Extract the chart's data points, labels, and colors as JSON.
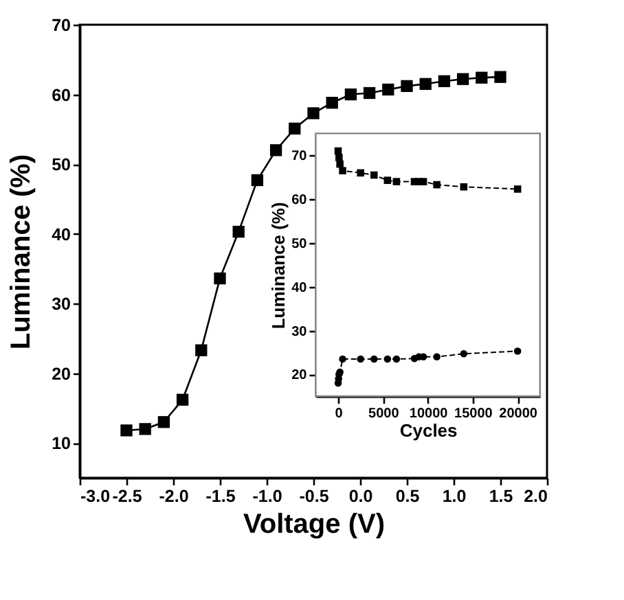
{
  "chart_data": [
    {
      "type": "line",
      "xlabel": "Voltage (V)",
      "ylabel": "Luminance (%)",
      "x": [
        -2.5,
        -2.3,
        -2.1,
        -1.9,
        -1.7,
        -1.5,
        -1.3,
        -1.1,
        -0.9,
        -0.7,
        -0.5,
        -0.3,
        -0.1,
        0.1,
        0.3,
        0.5,
        0.7,
        0.9,
        1.1,
        1.3,
        1.5
      ],
      "series": [
        {
          "color": "#000000",
          "values": [
            11.8,
            12.0,
            13.0,
            16.2,
            23.3,
            33.6,
            40.3,
            47.7,
            52.0,
            55.1,
            57.3,
            58.8,
            60.0,
            60.2,
            60.7,
            61.2,
            61.5,
            61.9,
            62.2,
            62.4,
            62.5
          ]
        }
      ],
      "xlim": [
        -3.0,
        2.0
      ],
      "ylim": [
        5,
        70
      ],
      "xticks": [
        {
          "value": -3,
          "label": "-3.0"
        },
        {
          "value": -2.5,
          "label": "-2.5"
        },
        {
          "value": -2,
          "label": "-2.0"
        },
        {
          "value": -1.5,
          "label": "-1.5"
        },
        {
          "value": -1,
          "label": "-1.0"
        },
        {
          "value": -0.5,
          "label": "-0.5"
        },
        {
          "value": 0,
          "label": "0.0"
        },
        0.5,
        {
          "value": 1,
          "label": "1.0"
        },
        1.5,
        {
          "value": 2,
          "label": "2.0"
        }
      ],
      "yticks": [
        10,
        20,
        30,
        40,
        50,
        60,
        70
      ],
      "marker": "square",
      "line_style": "solid",
      "grid": false
    },
    {
      "type": "line",
      "xlabel": "Cycles",
      "ylabel": "Luminance (%)",
      "xlim": [
        -2500,
        22500
      ],
      "ylim": [
        15,
        75
      ],
      "xticks": [
        0,
        5000,
        10000,
        15000,
        20000
      ],
      "yticks": [
        20,
        30,
        40,
        50,
        60,
        70
      ],
      "line_style": "dashed",
      "grid": false,
      "series": [
        {
          "color": "#000000",
          "marker": "square",
          "x": [
            0,
            100,
            200,
            500,
            2500,
            4000,
            5500,
            6500,
            8500,
            9000,
            9500,
            11000,
            14000,
            20000
          ],
          "values": [
            71,
            69.5,
            68,
            66.5,
            66,
            65.5,
            64.3,
            64,
            64,
            64,
            64,
            63.3,
            62.8,
            62.3
          ]
        },
        {
          "color": "#000000",
          "marker": "circle",
          "x": [
            0,
            50,
            100,
            200,
            500,
            2500,
            4000,
            5500,
            6500,
            8500,
            9000,
            9500,
            11000,
            14000,
            20000
          ],
          "values": [
            18,
            19,
            20,
            20.5,
            23.5,
            23.5,
            23.5,
            23.5,
            23.5,
            23.6,
            24,
            24,
            24,
            24.7,
            25.3
          ]
        }
      ]
    }
  ]
}
